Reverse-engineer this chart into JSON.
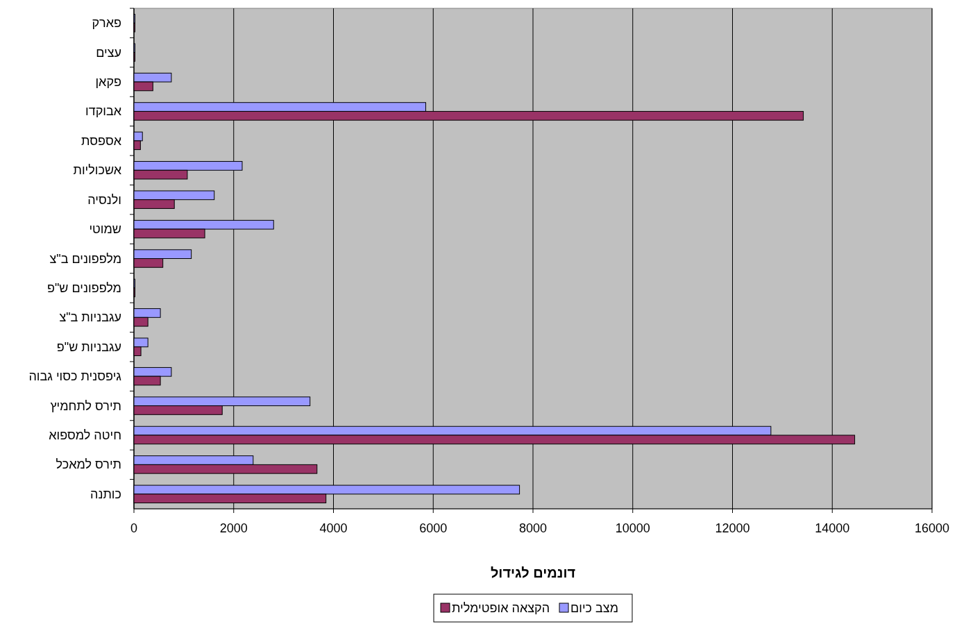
{
  "chart_data": {
    "type": "bar",
    "orientation": "horizontal",
    "xlabel": "דונמים לגידול",
    "categories": [
      "פארק",
      "עצים",
      "פקאן",
      "אבוקדו",
      "אספסת",
      "אשכוליות",
      "ולנסיה",
      "שמוטי",
      "מלפפונים ב\"צ",
      "מלפפונים ש\"פ",
      "עגבניות ב\"צ",
      "עגבניות ש\"פ",
      "גיפסנית כסוי גבוה",
      "תירס לתחמיץ",
      "חיטה למספוא",
      "תירס למאכל",
      "כותנה"
    ],
    "series": [
      {
        "name": "מצב כיום",
        "color": "#9999ff",
        "values": [
          20,
          20,
          750,
          5850,
          170,
          2170,
          1610,
          2800,
          1150,
          20,
          530,
          280,
          750,
          3530,
          12770,
          2390,
          7730
        ]
      },
      {
        "name": "הקצאה אופטימלית",
        "color": "#993366",
        "values": [
          20,
          20,
          380,
          13420,
          130,
          1070,
          810,
          1420,
          580,
          20,
          280,
          140,
          530,
          1770,
          14450,
          3670,
          3850
        ]
      }
    ],
    "xlim": [
      0,
      16000
    ],
    "xticks": [
      0,
      2000,
      4000,
      6000,
      8000,
      10000,
      12000,
      14000,
      16000
    ],
    "grid": "x",
    "legend": "bottom"
  }
}
